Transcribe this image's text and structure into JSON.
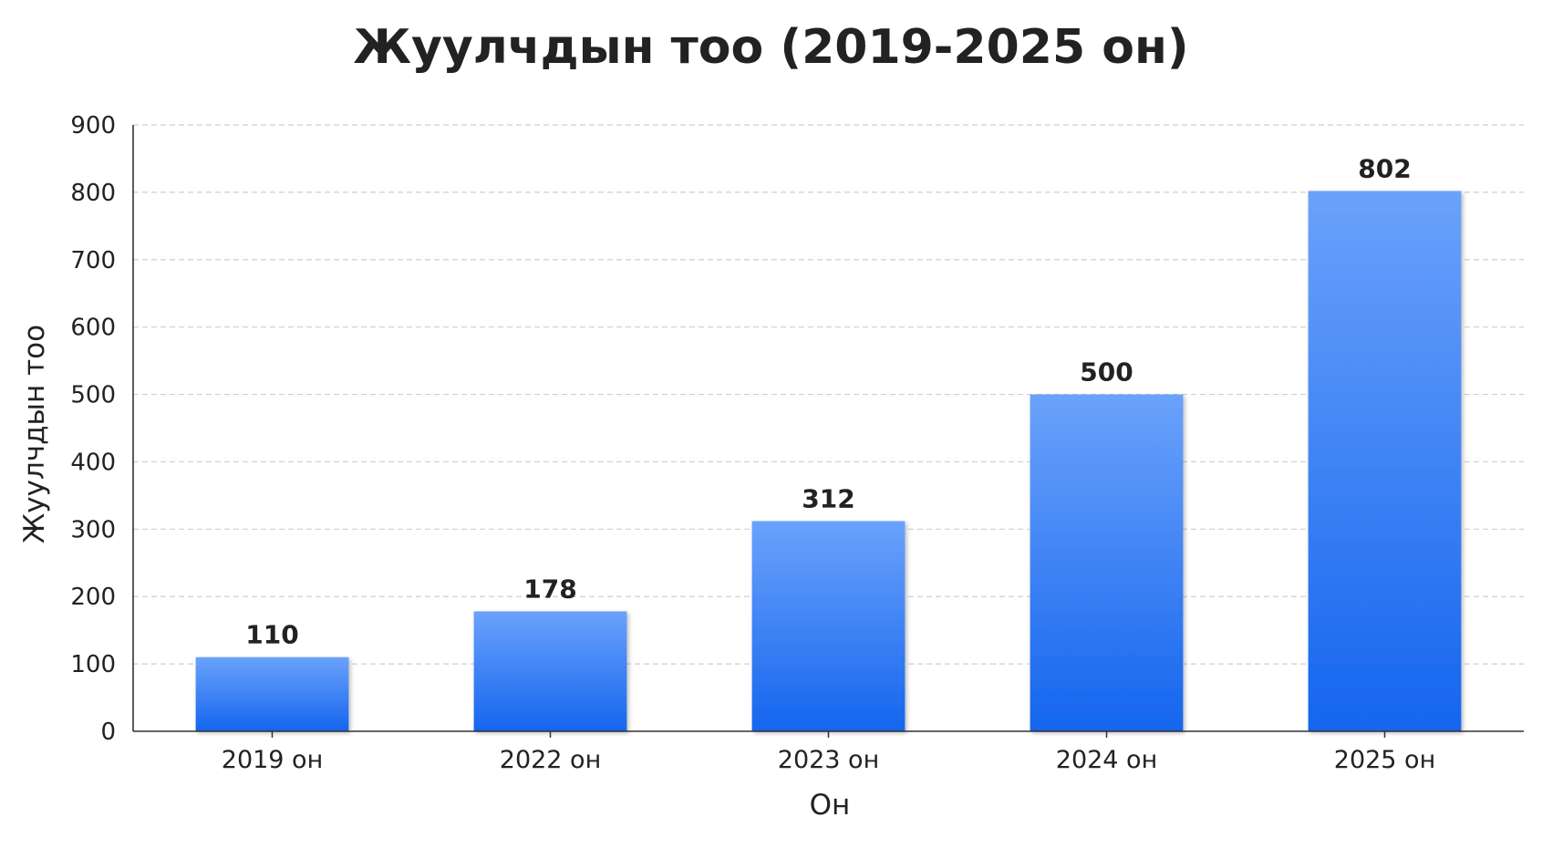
{
  "chart_data": {
    "type": "bar",
    "title": "Жуулчдын тоо (2019-2025 он)",
    "xlabel": "Он",
    "ylabel": "Жуулчдын тоо",
    "categories": [
      "2019 он",
      "2022 он",
      "2023 он",
      "2024 он",
      "2025 он"
    ],
    "values": [
      110,
      178,
      312,
      500,
      802
    ],
    "data_labels": [
      "110",
      "178",
      "312",
      "500",
      "802"
    ],
    "ylim": [
      0,
      900
    ],
    "yticks": [
      0,
      100,
      200,
      300,
      400,
      500,
      600,
      700,
      800,
      900
    ],
    "grid": true,
    "legend": "none",
    "colors": {
      "bar_top": "#6aa2fb",
      "bar_bottom": "#1565ee",
      "grid": "#cfcfcf",
      "axis": "#333333",
      "text": "#222222"
    }
  }
}
